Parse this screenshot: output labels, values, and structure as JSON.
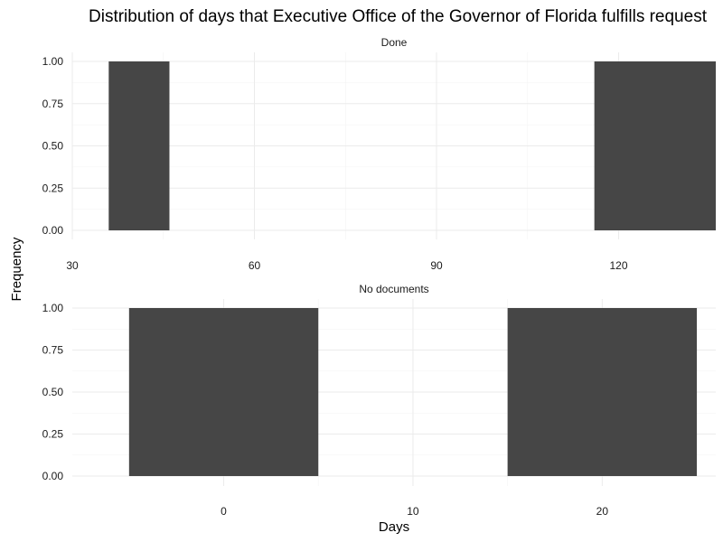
{
  "chart_data": {
    "type": "bar",
    "title": "Distribution of days that Executive Office of the Governor of Florida fulfills request",
    "xlabel": "Days",
    "ylabel": "Frequency",
    "grid": true,
    "colors": {
      "bar": "#464646"
    },
    "panels": [
      {
        "label": "Done",
        "xlim": [
          30,
          136
        ],
        "xticks": [
          30,
          60,
          90,
          120
        ],
        "ylim": [
          0,
          1
        ],
        "yticks": [
          0,
          0.25,
          0.5,
          0.75,
          1
        ],
        "ytick_labels": [
          "0.00",
          "0.25",
          "0.50",
          "0.75",
          "1.00"
        ],
        "bins": [
          {
            "x0": 36,
            "x1": 46,
            "count": 1
          },
          {
            "x0": 116,
            "x1": 136,
            "count": 1
          }
        ]
      },
      {
        "label": "No documents",
        "xlim": [
          -8,
          26
        ],
        "xticks": [
          0,
          10,
          20
        ],
        "ylim": [
          0,
          1
        ],
        "yticks": [
          0,
          0.25,
          0.5,
          0.75,
          1
        ],
        "ytick_labels": [
          "0.00",
          "0.25",
          "0.50",
          "0.75",
          "1.00"
        ],
        "bins": [
          {
            "x0": -5,
            "x1": 5,
            "count": 1
          },
          {
            "x0": 15,
            "x1": 25,
            "count": 1
          }
        ]
      }
    ]
  }
}
